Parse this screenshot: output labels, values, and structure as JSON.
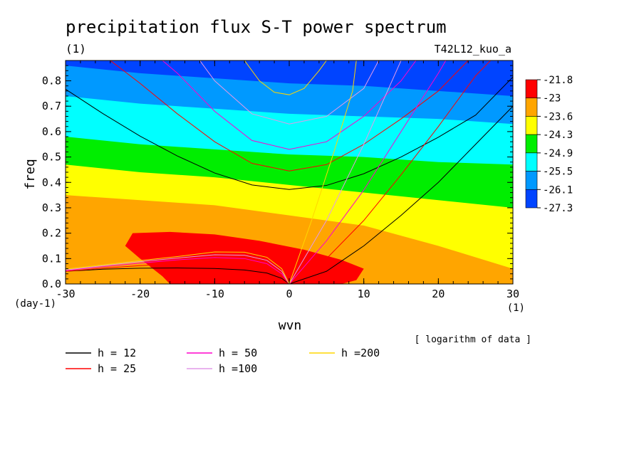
{
  "chart_data": {
    "type": "heatmap",
    "title": "precipitation flux S-T power spectrum",
    "subtitle": "(1)",
    "run_label": "T42L12_kuo_a",
    "xlabel": "wvn",
    "ylabel": "freq",
    "x_unit": "(1)",
    "y_unit": "(day-1)",
    "note": "[ logarithm of data ]",
    "xlim": [
      -30,
      30
    ],
    "ylim": [
      0,
      0.88
    ],
    "x_ticks": [
      -30,
      -20,
      -10,
      0,
      10,
      20,
      30
    ],
    "y_ticks": [
      0.0,
      0.1,
      0.2,
      0.3,
      0.4,
      0.5,
      0.6,
      0.7,
      0.8
    ],
    "colorbar": {
      "levels": [
        "-21.8",
        "-23",
        "-23.6",
        "-24.3",
        "-24.9",
        "-25.5",
        "-26.1",
        "-27.3"
      ],
      "colors": [
        "#ff0000",
        "#ffa500",
        "#ffff00",
        "#00ee00",
        "#00ffff",
        "#0099ff",
        "#0044ff"
      ]
    },
    "bands": [
      {
        "color": "#0044ff",
        "boundary": [
          [
            -30,
            0.88
          ],
          [
            30,
            0.88
          ]
        ]
      },
      {
        "color": "#0099ff",
        "boundary": [
          [
            -30,
            0.86
          ],
          [
            -20,
            0.83
          ],
          [
            -10,
            0.81
          ],
          [
            0,
            0.79
          ],
          [
            10,
            0.78
          ],
          [
            20,
            0.76
          ],
          [
            30,
            0.74
          ]
        ]
      },
      {
        "color": "#00ffff",
        "boundary": [
          [
            -30,
            0.74
          ],
          [
            -20,
            0.71
          ],
          [
            -10,
            0.69
          ],
          [
            0,
            0.67
          ],
          [
            10,
            0.66
          ],
          [
            20,
            0.65
          ],
          [
            30,
            0.63
          ]
        ]
      },
      {
        "color": "#00ee00",
        "boundary": [
          [
            -30,
            0.58
          ],
          [
            -20,
            0.55
          ],
          [
            -10,
            0.53
          ],
          [
            0,
            0.51
          ],
          [
            10,
            0.5
          ],
          [
            20,
            0.48
          ],
          [
            30,
            0.47
          ]
        ]
      },
      {
        "color": "#ffff00",
        "boundary": [
          [
            -30,
            0.47
          ],
          [
            -20,
            0.44
          ],
          [
            -10,
            0.42
          ],
          [
            0,
            0.39
          ],
          [
            10,
            0.36
          ],
          [
            20,
            0.33
          ],
          [
            30,
            0.3
          ]
        ]
      },
      {
        "color": "#ffa500",
        "boundary": [
          [
            -30,
            0.35
          ],
          [
            -20,
            0.33
          ],
          [
            -10,
            0.31
          ],
          [
            0,
            0.27
          ],
          [
            10,
            0.23
          ],
          [
            20,
            0.15
          ],
          [
            30,
            0.06
          ]
        ]
      }
    ],
    "red_region": [
      [
        -21,
        0.2
      ],
      [
        -16,
        0.205
      ],
      [
        -10,
        0.195
      ],
      [
        -4,
        0.17
      ],
      [
        2,
        0.135
      ],
      [
        7,
        0.095
      ],
      [
        10,
        0.06
      ],
      [
        9,
        0.015
      ],
      [
        7,
        0.0
      ],
      [
        -16,
        0.0
      ],
      [
        -17,
        0.03
      ],
      [
        -20,
        0.1
      ],
      [
        -22,
        0.15
      ]
    ],
    "orange_bottom_left": [
      [
        -30,
        0.09
      ],
      [
        -26,
        0.04
      ],
      [
        -22,
        0.0
      ],
      [
        -30,
        0.0
      ]
    ],
    "legend": [
      {
        "label": "h = 12",
        "color": "#000000"
      },
      {
        "label": "h = 25",
        "color": "#ff0000"
      },
      {
        "label": "h = 50",
        "color": "#ff00cc"
      },
      {
        "label": "h =100",
        "color": "#e29ae8"
      },
      {
        "label": "h =200",
        "color": "#ffd700"
      }
    ],
    "series": [
      {
        "name": "h = 12",
        "color": "#000000",
        "points": [
          [
            -30,
            0.767
          ],
          [
            -25,
            0.671
          ],
          [
            -20,
            0.582
          ],
          [
            -15,
            0.504
          ],
          [
            -10,
            0.437
          ],
          [
            -5,
            0.39
          ],
          [
            0,
            0.372
          ],
          [
            5,
            0.388
          ],
          [
            10,
            0.434
          ],
          [
            15,
            0.5
          ],
          [
            20,
            0.578
          ],
          [
            25,
            0.665
          ],
          [
            30,
            0.815
          ]
        ]
      },
      {
        "name": "h = 12",
        "color": "#000000",
        "points": [
          [
            0,
            0.0
          ],
          [
            5,
            0.05
          ],
          [
            10,
            0.15
          ],
          [
            15,
            0.27
          ],
          [
            20,
            0.4
          ],
          [
            25,
            0.55
          ],
          [
            30,
            0.7
          ]
        ]
      },
      {
        "name": "h = 12",
        "color": "#000000",
        "points": [
          [
            -30,
            0.05
          ],
          [
            -25,
            0.058
          ],
          [
            -20,
            0.062
          ],
          [
            -15,
            0.063
          ],
          [
            -10,
            0.061
          ],
          [
            -6,
            0.055
          ],
          [
            -3,
            0.043
          ],
          [
            -1,
            0.022
          ],
          [
            0,
            0.0
          ]
        ]
      },
      {
        "name": "h = 25",
        "color": "#ff0000",
        "points": [
          [
            -24,
            0.88
          ],
          [
            -20,
            0.79
          ],
          [
            -15,
            0.67
          ],
          [
            -10,
            0.56
          ],
          [
            -5,
            0.475
          ],
          [
            0,
            0.445
          ],
          [
            5,
            0.47
          ],
          [
            10,
            0.55
          ],
          [
            15,
            0.65
          ],
          [
            20,
            0.76
          ],
          [
            24,
            0.88
          ]
        ]
      },
      {
        "name": "h = 25",
        "color": "#ff0000",
        "points": [
          [
            0,
            0.0
          ],
          [
            5,
            0.1
          ],
          [
            10,
            0.25
          ],
          [
            15,
            0.43
          ],
          [
            20,
            0.62
          ],
          [
            25,
            0.82
          ],
          [
            27,
            0.88
          ]
        ]
      },
      {
        "name": "h = 25",
        "color": "#ff0000",
        "points": [
          [
            -30,
            0.05
          ],
          [
            -25,
            0.062
          ],
          [
            -20,
            0.072
          ],
          [
            -15,
            0.08
          ],
          [
            -10,
            0.084
          ],
          [
            -6,
            0.079
          ],
          [
            -3,
            0.062
          ],
          [
            -1,
            0.03
          ],
          [
            0,
            0.0
          ]
        ]
      },
      {
        "name": "h = 50",
        "color": "#ff00cc",
        "points": [
          [
            -17,
            0.88
          ],
          [
            -15,
            0.83
          ],
          [
            -10,
            0.68
          ],
          [
            -5,
            0.565
          ],
          [
            0,
            0.53
          ],
          [
            5,
            0.56
          ],
          [
            10,
            0.66
          ],
          [
            15,
            0.8
          ],
          [
            17,
            0.88
          ]
        ]
      },
      {
        "name": "h = 50",
        "color": "#ff00cc",
        "points": [
          [
            0,
            0.0
          ],
          [
            5,
            0.17
          ],
          [
            10,
            0.37
          ],
          [
            15,
            0.6
          ],
          [
            20,
            0.83
          ],
          [
            21,
            0.88
          ]
        ]
      },
      {
        "name": "h = 50",
        "color": "#ff00cc",
        "points": [
          [
            -30,
            0.053
          ],
          [
            -25,
            0.068
          ],
          [
            -20,
            0.082
          ],
          [
            -15,
            0.095
          ],
          [
            -10,
            0.104
          ],
          [
            -6,
            0.1
          ],
          [
            -3,
            0.08
          ],
          [
            -1,
            0.04
          ],
          [
            0,
            0.0
          ]
        ]
      },
      {
        "name": "h =100",
        "color": "#e29ae8",
        "points": [
          [
            -12,
            0.88
          ],
          [
            -10,
            0.8
          ],
          [
            -5,
            0.67
          ],
          [
            0,
            0.63
          ],
          [
            5,
            0.66
          ],
          [
            10,
            0.77
          ],
          [
            12,
            0.88
          ]
        ]
      },
      {
        "name": "h =100",
        "color": "#e29ae8",
        "points": [
          [
            0,
            0.0
          ],
          [
            5,
            0.25
          ],
          [
            10,
            0.55
          ],
          [
            15,
            0.88
          ]
        ]
      },
      {
        "name": "h =100",
        "color": "#e29ae8",
        "points": [
          [
            -30,
            0.055
          ],
          [
            -25,
            0.072
          ],
          [
            -20,
            0.088
          ],
          [
            -15,
            0.102
          ],
          [
            -10,
            0.115
          ],
          [
            -6,
            0.113
          ],
          [
            -3,
            0.093
          ],
          [
            -1,
            0.05
          ],
          [
            0,
            0.0
          ]
        ]
      },
      {
        "name": "h =200",
        "color": "#ffd700",
        "points": [
          [
            -6,
            0.88
          ],
          [
            -4,
            0.8
          ],
          [
            -2,
            0.755
          ],
          [
            0,
            0.745
          ],
          [
            2,
            0.77
          ],
          [
            4,
            0.84
          ],
          [
            5,
            0.88
          ]
        ]
      },
      {
        "name": "h =200",
        "color": "#ffd700",
        "points": [
          [
            0,
            0.0
          ],
          [
            3,
            0.25
          ],
          [
            6,
            0.52
          ],
          [
            8.5,
            0.76
          ],
          [
            9,
            0.88
          ]
        ]
      },
      {
        "name": "h =200",
        "color": "#ffd700",
        "points": [
          [
            -30,
            0.058
          ],
          [
            -25,
            0.075
          ],
          [
            -20,
            0.092
          ],
          [
            -15,
            0.108
          ],
          [
            -10,
            0.126
          ],
          [
            -6,
            0.125
          ],
          [
            -3,
            0.105
          ],
          [
            -1,
            0.06
          ],
          [
            0,
            0.0
          ]
        ]
      }
    ]
  }
}
